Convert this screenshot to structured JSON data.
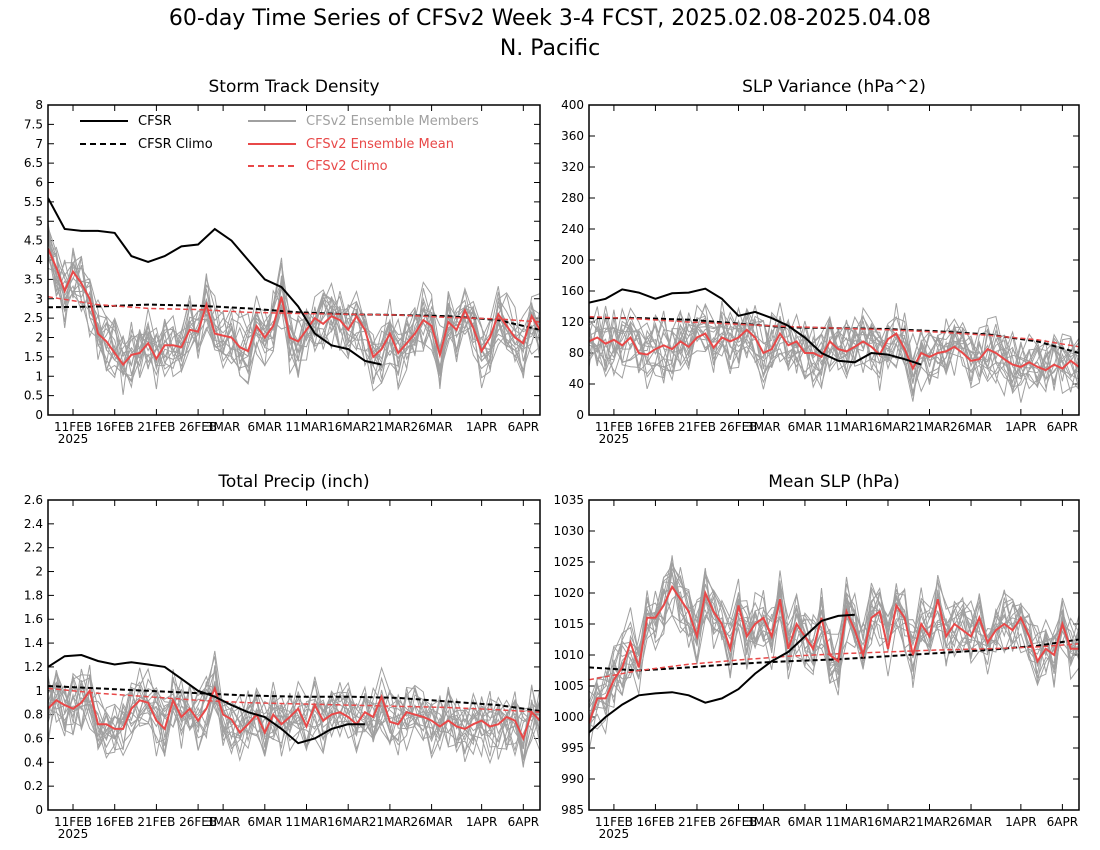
{
  "title_line1": "60-day Time Series of CFSv2 Week 3-4 FCST, 2025.02.08-2025.04.08",
  "title_line2": "N. Pacific",
  "year_label": "2025",
  "x_ticks": [
    "11FEB",
    "16FEB",
    "21FEB",
    "26FEB",
    "3MAR",
    "6MAR",
    "11MAR",
    "16MAR",
    "21MAR",
    "26MAR",
    "1APR",
    "6APR"
  ],
  "colors": {
    "cfsr": "#000000",
    "members": "#a0a0a0",
    "ens_mean": "#e84848",
    "cfsv2_climo": "#e84848"
  },
  "legend": {
    "cfsr": "CFSR",
    "cfsr_climo": "CFSR Climo",
    "members": "CFSv2 Ensemble Members",
    "ens_mean": "CFSv2 Ensemble Mean",
    "cfsv2_climo": "CFSv2 Climo"
  },
  "chart_data": [
    {
      "type": "line",
      "title": "Storm Track Density",
      "ylim": [
        0,
        8
      ],
      "yticks": [
        "0",
        "0.5",
        "1",
        "1.5",
        "2",
        "2.5",
        "3",
        "3.5",
        "4",
        "4.5",
        "5",
        "5.5",
        "6",
        "6.5",
        "7",
        "7.5",
        "8"
      ],
      "x": "day index 0-59 (2025-02-08 .. 2025-04-08)",
      "series": [
        {
          "name": "CFSR",
          "x": [
            0,
            2,
            4,
            6,
            8,
            10,
            12,
            14,
            16,
            18,
            20,
            22,
            24,
            26,
            28,
            30,
            32,
            34,
            36,
            38,
            40,
            42,
            44,
            46,
            48,
            50,
            52
          ],
          "values": [
            5.6,
            4.8,
            4.75,
            4.75,
            4.7,
            4.1,
            3.95,
            4.1,
            4.35,
            4.4,
            4.8,
            4.5,
            4.0,
            3.5,
            3.3,
            2.8,
            2.1,
            1.8,
            1.7,
            1.4,
            1.3,
            null,
            null,
            null,
            null,
            null,
            null
          ]
        },
        {
          "name": "CFSR Climo",
          "x": [
            0,
            6,
            12,
            18,
            24,
            30,
            36,
            42,
            48,
            54,
            60
          ],
          "values": [
            2.78,
            2.8,
            2.85,
            2.82,
            2.75,
            2.65,
            2.6,
            2.58,
            2.55,
            2.45,
            2.2
          ]
        },
        {
          "name": "CFSv2 Ensemble Mean",
          "values": [
            4.3,
            3.8,
            3.2,
            3.7,
            3.4,
            3.0,
            2.1,
            1.9,
            1.6,
            1.3,
            1.55,
            1.6,
            1.85,
            1.45,
            1.8,
            1.8,
            1.75,
            2.2,
            2.15,
            2.85,
            2.1,
            2.05,
            2.0,
            1.75,
            1.65,
            2.3,
            2.0,
            2.3,
            3.05,
            2.0,
            1.9,
            2.2,
            2.5,
            2.35,
            2.55,
            2.45,
            2.2,
            2.55,
            2.2,
            1.5,
            1.7,
            2.1,
            1.6,
            1.85,
            2.1,
            2.45,
            2.3,
            1.55,
            2.4,
            2.2,
            2.7,
            2.25,
            1.65,
            2.0,
            2.6,
            2.3,
            2.0,
            1.85,
            2.55,
            2.2
          ]
        },
        {
          "name": "CFSv2 Climo",
          "x": [
            0,
            6,
            12,
            18,
            24,
            30,
            36,
            42,
            48,
            54,
            60
          ],
          "values": [
            3.05,
            2.85,
            2.75,
            2.72,
            2.65,
            2.62,
            2.6,
            2.58,
            2.52,
            2.48,
            2.4
          ]
        }
      ]
    },
    {
      "type": "line",
      "title": "SLP Variance (hPa^2)",
      "ylim": [
        0,
        400
      ],
      "yticks": [
        "0",
        "40",
        "80",
        "120",
        "160",
        "200",
        "240",
        "280",
        "320",
        "360",
        "400"
      ],
      "series": [
        {
          "name": "CFSR",
          "x": [
            0,
            2,
            4,
            6,
            8,
            10,
            12,
            14,
            16,
            18,
            20,
            22,
            24,
            26,
            28,
            30,
            32,
            34,
            36,
            38,
            40
          ],
          "values": [
            145,
            150,
            162,
            158,
            150,
            157,
            158,
            163,
            150,
            128,
            133,
            125,
            115,
            100,
            80,
            70,
            68,
            80,
            78,
            72,
            65
          ]
        },
        {
          "name": "CFSR Climo",
          "x": [
            0,
            6,
            12,
            18,
            24,
            30,
            36,
            42,
            48,
            54,
            60
          ],
          "values": [
            125,
            125,
            123,
            118,
            113,
            112,
            111,
            108,
            104,
            95,
            80
          ]
        },
        {
          "name": "CFSv2 Ensemble Mean",
          "values": [
            95,
            100,
            92,
            97,
            90,
            100,
            80,
            78,
            85,
            90,
            85,
            95,
            88,
            100,
            105,
            87,
            100,
            95,
            100,
            110,
            100,
            80,
            85,
            105,
            90,
            95,
            80,
            80,
            75,
            95,
            85,
            82,
            88,
            95,
            88,
            78,
            98,
            105,
            85,
            60,
            80,
            75,
            80,
            82,
            88,
            80,
            70,
            72,
            85,
            80,
            72,
            65,
            62,
            68,
            62,
            58,
            65,
            60,
            70,
            62
          ]
        },
        {
          "name": "CFSv2 Climo",
          "x": [
            0,
            6,
            12,
            18,
            24,
            30,
            36,
            42,
            48,
            54,
            60
          ],
          "values": [
            127,
            124,
            120,
            117,
            114,
            112,
            110,
            107,
            103,
            97,
            88
          ]
        }
      ]
    },
    {
      "type": "line",
      "title": "Total Precip (inch)",
      "ylim": [
        0,
        2.6
      ],
      "yticks": [
        "0",
        "0.2",
        "0.4",
        "0.6",
        "0.8",
        "1",
        "1.2",
        "1.4",
        "1.6",
        "1.8",
        "2",
        "2.2",
        "2.4",
        "2.6"
      ],
      "series": [
        {
          "name": "CFSR",
          "x": [
            0,
            2,
            4,
            6,
            8,
            10,
            12,
            14,
            16,
            18,
            20,
            22,
            24,
            26,
            28,
            30,
            32,
            34,
            36,
            38,
            40
          ],
          "values": [
            1.2,
            1.29,
            1.3,
            1.25,
            1.22,
            1.24,
            1.22,
            1.2,
            1.1,
            1.0,
            0.95,
            0.88,
            0.82,
            0.78,
            0.68,
            0.56,
            0.6,
            0.68,
            0.72,
            0.72,
            null
          ]
        },
        {
          "name": "CFSR Climo",
          "x": [
            0,
            6,
            12,
            18,
            24,
            30,
            36,
            42,
            48,
            54,
            60
          ],
          "values": [
            1.04,
            1.02,
            1.0,
            0.98,
            0.96,
            0.95,
            0.95,
            0.94,
            0.91,
            0.88,
            0.83
          ]
        },
        {
          "name": "CFSv2 Ensemble Mean",
          "values": [
            0.85,
            0.92,
            0.88,
            0.85,
            0.9,
            1.0,
            0.72,
            0.72,
            0.68,
            0.68,
            0.85,
            0.92,
            0.9,
            0.75,
            0.68,
            0.92,
            0.78,
            0.85,
            0.75,
            0.85,
            1.02,
            0.8,
            0.76,
            0.65,
            0.72,
            0.8,
            0.65,
            0.8,
            0.72,
            0.78,
            0.85,
            0.7,
            0.88,
            0.75,
            0.8,
            0.82,
            0.78,
            0.72,
            0.82,
            0.78,
            0.95,
            0.74,
            0.72,
            0.82,
            0.8,
            0.78,
            0.75,
            0.7,
            0.75,
            0.7,
            0.68,
            0.72,
            0.75,
            0.7,
            0.72,
            0.78,
            0.75,
            0.6,
            0.82,
            0.75
          ]
        },
        {
          "name": "CFSv2 Climo",
          "x": [
            0,
            6,
            12,
            18,
            24,
            30,
            36,
            42,
            48,
            54,
            60
          ],
          "values": [
            1.02,
            0.98,
            0.95,
            0.92,
            0.9,
            0.89,
            0.88,
            0.87,
            0.86,
            0.84,
            0.82
          ]
        }
      ]
    },
    {
      "type": "line",
      "title": "Mean SLP (hPa)",
      "ylim": [
        985,
        1035
      ],
      "yticks": [
        "985",
        "990",
        "995",
        "1000",
        "1005",
        "1010",
        "1015",
        "1020",
        "1025",
        "1030",
        "1035"
      ],
      "series": [
        {
          "name": "CFSR",
          "x": [
            0,
            2,
            4,
            6,
            8,
            10,
            12,
            14,
            16,
            18,
            20,
            22,
            24,
            26,
            28,
            30,
            32,
            34,
            36,
            38,
            40
          ],
          "values": [
            997.5,
            1000,
            1002,
            1003.5,
            1003.8,
            1004,
            1003.5,
            1002.3,
            1003,
            1004.5,
            1007,
            1009,
            1010.5,
            1013,
            1015.5,
            1016.3,
            1016.5,
            null,
            null,
            null,
            null
          ]
        },
        {
          "name": "CFSR Climo",
          "x": [
            0,
            6,
            12,
            18,
            24,
            30,
            36,
            42,
            48,
            54,
            60
          ],
          "values": [
            1008,
            1007.5,
            1008,
            1008.6,
            1009,
            1009.3,
            1009.8,
            1010.3,
            1010.8,
            1011.5,
            1012.5
          ]
        },
        {
          "name": "CFSv2 Ensemble Mean",
          "values": [
            999,
            1003,
            1003,
            1006,
            1008,
            1012,
            1008,
            1016,
            1016,
            1018,
            1021,
            1019,
            1017,
            1013,
            1020,
            1017,
            1015,
            1011,
            1018,
            1013,
            1015,
            1016,
            1013,
            1019,
            1011,
            1015,
            1013,
            1011,
            1016,
            1010,
            1009,
            1017,
            1014,
            1010,
            1016,
            1017,
            1011,
            1018,
            1016,
            1010,
            1015,
            1013,
            1019,
            1013,
            1015,
            1014,
            1013,
            1016,
            1012,
            1014,
            1015,
            1014,
            1016,
            1013,
            1009,
            1011,
            1010,
            1015,
            1011,
            1011
          ]
        },
        {
          "name": "CFSv2 Climo",
          "x": [
            0,
            6,
            12,
            18,
            24,
            30,
            36,
            42,
            48,
            54,
            60
          ],
          "values": [
            1006,
            1007.5,
            1008.5,
            1009.2,
            1009.8,
            1010.2,
            1010.5,
            1010.8,
            1011,
            1011.3,
            1011.8
          ]
        }
      ]
    }
  ]
}
